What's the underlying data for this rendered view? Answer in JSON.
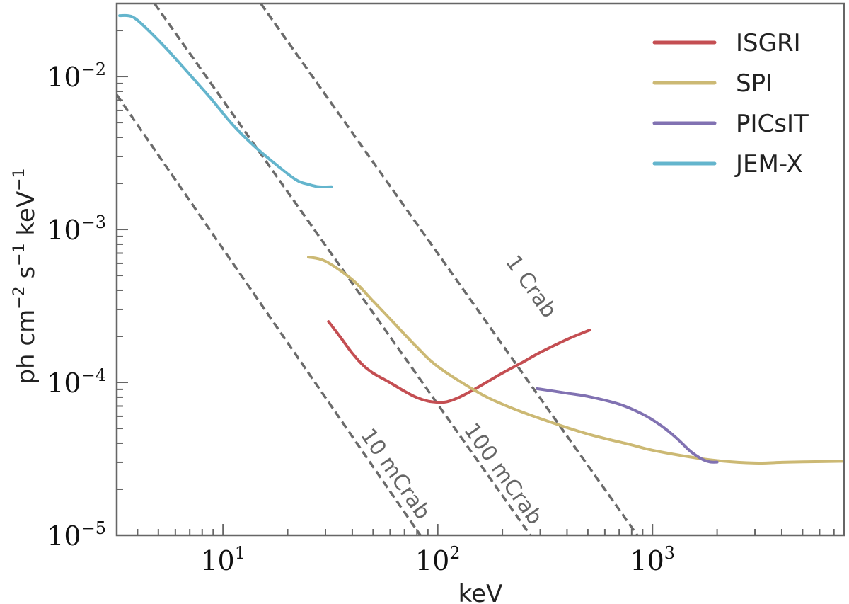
{
  "chart_data": {
    "type": "line",
    "xlabel": "keV",
    "ylabel": "ph cm$^{-2}$ s$^{-1}$ keV$^{-1}$",
    "ylabel_parts": {
      "ph": "ph cm",
      "e1": "−2",
      "s": " s",
      "e2": "−1",
      "kev": " keV",
      "e3": "−1"
    },
    "xscale": "log",
    "yscale": "log",
    "xlim": [
      3.2,
      7800
    ],
    "ylim": [
      1e-05,
      0.03
    ],
    "xticks": [
      {
        "value": 10,
        "base": "10",
        "exp": "1"
      },
      {
        "value": 100,
        "base": "10",
        "exp": "2"
      },
      {
        "value": 1000,
        "base": "10",
        "exp": "3"
      }
    ],
    "yticks": [
      {
        "value": 0.01,
        "base": "10",
        "exp": "−2"
      },
      {
        "value": 0.001,
        "base": "10",
        "exp": "−3"
      },
      {
        "value": 0.0001,
        "base": "10",
        "exp": "−4"
      },
      {
        "value": 1e-05,
        "base": "10",
        "exp": "−5"
      }
    ],
    "legend_position": "top-right",
    "series": [
      {
        "name": "ISGRI",
        "color": "#c44e52",
        "x": [
          31,
          35,
          40,
          45,
          50,
          60,
          70,
          80,
          90,
          100,
          110,
          125,
          150,
          200,
          250,
          300,
          400,
          510
        ],
        "y": [
          0.00025,
          0.0002,
          0.000155,
          0.000129,
          0.000115,
          9.95e-05,
          8.75e-05,
          7.95e-05,
          7.55e-05,
          7.42e-05,
          7.47e-05,
          7.95e-05,
          9.1e-05,
          0.000115,
          0.000136,
          0.000157,
          0.000191,
          0.00022
        ]
      },
      {
        "name": "SPI",
        "color": "#ccb974",
        "x": [
          25,
          30,
          40,
          50,
          60,
          80,
          100,
          150,
          200,
          300,
          500,
          800,
          1000,
          1500,
          2000,
          3000,
          4000,
          5000,
          7800
        ],
        "y": [
          0.00066,
          0.00062,
          0.00047,
          0.00034,
          0.00026,
          0.00017,
          0.000127,
          8.8e-05,
          7.2e-05,
          5.8e-05,
          4.6e-05,
          3.9e-05,
          3.6e-05,
          3.25e-05,
          3.08e-05,
          2.97e-05,
          3e-05,
          3.02e-05,
          3.05e-05
        ]
      },
      {
        "name": "PICsIT",
        "color": "#8172b2",
        "x": [
          290,
          400,
          500,
          700,
          900,
          1100,
          1300,
          1500,
          1700,
          1850,
          2000
        ],
        "y": [
          9.1e-05,
          8.5e-05,
          8.1e-05,
          7.2e-05,
          6.2e-05,
          5.2e-05,
          4.3e-05,
          3.55e-05,
          3.15e-05,
          3.02e-05,
          3.01e-05
        ]
      },
      {
        "name": "JEM-X",
        "color": "#64b5cd",
        "x": [
          3.3,
          3.8,
          4.5,
          5.5,
          7,
          9,
          11,
          14,
          18,
          22,
          25,
          28,
          32
        ],
        "y": [
          0.025,
          0.0245,
          0.02,
          0.015,
          0.0103,
          0.0069,
          0.0049,
          0.0035,
          0.0026,
          0.0021,
          0.00197,
          0.0019,
          0.0019
        ]
      }
    ],
    "reference_lines": [
      {
        "name": "10 mCrab",
        "label": "10 mCrab",
        "label_at": [
          63,
          2.5e-05
        ],
        "points": [
          [
            3.2,
            0.0076
          ],
          [
            83,
            1e-05
          ]
        ]
      },
      {
        "name": "100 mCrab",
        "label": "100 mCrab",
        "label_at": [
          200,
          2.5e-05
        ],
        "points": [
          [
            4.8,
            0.03
          ],
          [
            270,
            1e-05
          ]
        ]
      },
      {
        "name": "1 Crab",
        "label": "1 Crab",
        "label_at": [
          270,
          0.00042
        ],
        "points": [
          [
            15,
            0.03
          ],
          [
            850,
            1e-05
          ]
        ]
      }
    ]
  }
}
